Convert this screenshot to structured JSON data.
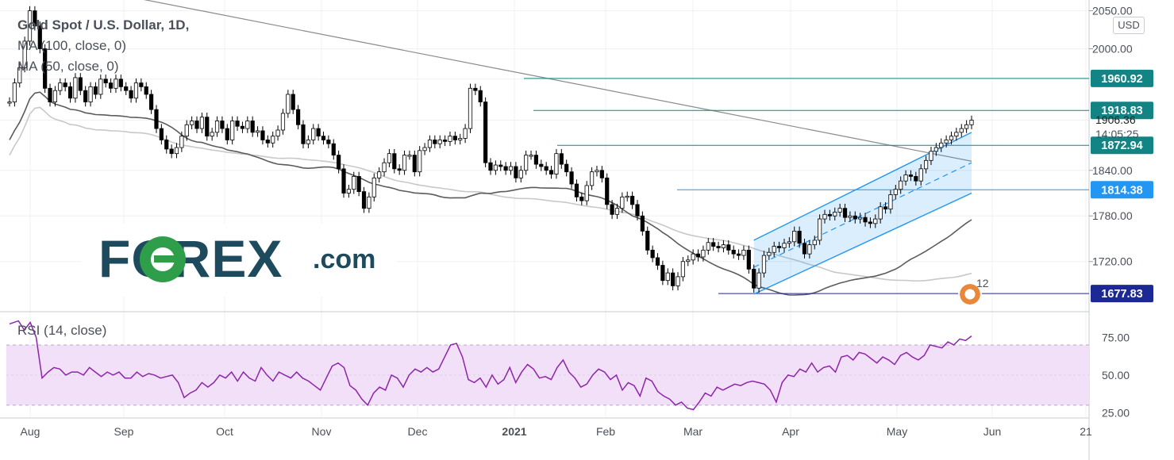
{
  "chart_data": [
    {
      "type": "line",
      "panel": "price",
      "title": "Gold Spot / U.S. Dollar, 1D,",
      "unit": "USD",
      "moving_averages": [
        {
          "name": "MA (100, close, 0)",
          "color": "#c8c8c8"
        },
        {
          "name": "MA (50, close, 0)",
          "color": "#5b5b5b"
        }
      ],
      "candles_color": "#000000",
      "channel_color": "#2196f3",
      "ylim": [
        1655,
        2060
      ],
      "y_ticks": [
        "2050.00",
        "2000.00",
        "1840.00",
        "1780.00",
        "1720.00"
      ],
      "x_months": [
        "Aug",
        "Sep",
        "Oct",
        "Nov",
        "Dec",
        "2021",
        "Feb",
        "Mar",
        "Apr",
        "May",
        "Jun",
        "21"
      ],
      "price_labels": [
        {
          "value": "1960.92",
          "level": 1960.92,
          "style": "teal"
        },
        {
          "value": "1918.83",
          "level": 1918.83,
          "style": "teal"
        },
        {
          "value": "1872.94",
          "level": 1872.94,
          "style": "teal"
        },
        {
          "value": "1814.38",
          "level": 1814.38,
          "style": "blue"
        },
        {
          "value": "1677.83",
          "level": 1677.83,
          "style": "navy"
        }
      ],
      "last_price": "1906.36",
      "countdown": "14:05:25",
      "close_series": [
        [
          0,
          1930
        ],
        [
          1,
          1955
        ],
        [
          2,
          1975
        ],
        [
          3,
          2010
        ],
        [
          4,
          2050
        ],
        [
          5,
          2030
        ],
        [
          6,
          2000
        ],
        [
          7,
          1948
        ],
        [
          8,
          1930
        ],
        [
          9,
          1945
        ],
        [
          10,
          1955
        ],
        [
          11,
          1950
        ],
        [
          12,
          1935
        ],
        [
          13,
          1962
        ],
        [
          14,
          1945
        ],
        [
          15,
          1930
        ],
        [
          16,
          1950
        ],
        [
          17,
          1940
        ],
        [
          18,
          1960
        ],
        [
          19,
          1955
        ],
        [
          20,
          1948
        ],
        [
          21,
          1960
        ],
        [
          22,
          1950
        ],
        [
          23,
          1945
        ],
        [
          24,
          1935
        ],
        [
          25,
          1955
        ],
        [
          26,
          1950
        ],
        [
          27,
          1940
        ],
        [
          28,
          1920
        ],
        [
          29,
          1895
        ],
        [
          30,
          1880
        ],
        [
          31,
          1868
        ],
        [
          32,
          1862
        ],
        [
          33,
          1870
        ],
        [
          34,
          1885
        ],
        [
          35,
          1900
        ],
        [
          36,
          1905
        ],
        [
          37,
          1895
        ],
        [
          38,
          1910
        ],
        [
          39,
          1885
        ],
        [
          40,
          1890
        ],
        [
          41,
          1905
        ],
        [
          42,
          1895
        ],
        [
          43,
          1880
        ],
        [
          44,
          1905
        ],
        [
          45,
          1898
        ],
        [
          46,
          1895
        ],
        [
          47,
          1905
        ],
        [
          48,
          1890
        ],
        [
          49,
          1892
        ],
        [
          50,
          1880
        ],
        [
          51,
          1876
        ],
        [
          52,
          1885
        ],
        [
          53,
          1893
        ],
        [
          54,
          1915
        ],
        [
          55,
          1940
        ],
        [
          56,
          1920
        ],
        [
          57,
          1900
        ],
        [
          58,
          1875
        ],
        [
          59,
          1880
        ],
        [
          60,
          1895
        ],
        [
          61,
          1885
        ],
        [
          62,
          1880
        ],
        [
          63,
          1875
        ],
        [
          64,
          1860
        ],
        [
          65,
          1842
        ],
        [
          66,
          1810
        ],
        [
          67,
          1815
        ],
        [
          68,
          1832
        ],
        [
          69,
          1812
        ],
        [
          70,
          1790
        ],
        [
          71,
          1805
        ],
        [
          72,
          1830
        ],
        [
          73,
          1838
        ],
        [
          74,
          1850
        ],
        [
          75,
          1862
        ],
        [
          76,
          1842
        ],
        [
          77,
          1840
        ],
        [
          78,
          1860
        ],
        [
          79,
          1860
        ],
        [
          80,
          1838
        ],
        [
          81,
          1866
        ],
        [
          82,
          1870
        ],
        [
          83,
          1880
        ],
        [
          84,
          1875
        ],
        [
          85,
          1880
        ],
        [
          86,
          1878
        ],
        [
          87,
          1885
        ],
        [
          88,
          1880
        ],
        [
          89,
          1882
        ],
        [
          90,
          1895
        ],
        [
          91,
          1948
        ],
        [
          92,
          1945
        ],
        [
          93,
          1930
        ],
        [
          94,
          1850
        ],
        [
          95,
          1840
        ],
        [
          96,
          1847
        ],
        [
          97,
          1845
        ],
        [
          98,
          1840
        ],
        [
          99,
          1845
        ],
        [
          100,
          1830
        ],
        [
          101,
          1840
        ],
        [
          102,
          1860
        ],
        [
          103,
          1860
        ],
        [
          104,
          1848
        ],
        [
          105,
          1845
        ],
        [
          106,
          1840
        ],
        [
          107,
          1835
        ],
        [
          108,
          1862
        ],
        [
          109,
          1848
        ],
        [
          110,
          1838
        ],
        [
          111,
          1822
        ],
        [
          112,
          1805
        ],
        [
          113,
          1800
        ],
        [
          114,
          1820
        ],
        [
          115,
          1838
        ],
        [
          116,
          1840
        ],
        [
          117,
          1830
        ],
        [
          118,
          1795
        ],
        [
          119,
          1782
        ],
        [
          120,
          1790
        ],
        [
          121,
          1805
        ],
        [
          122,
          1806
        ],
        [
          123,
          1795
        ],
        [
          124,
          1780
        ],
        [
          125,
          1760
        ],
        [
          126,
          1735
        ],
        [
          127,
          1725
        ],
        [
          128,
          1715
        ],
        [
          129,
          1695
        ],
        [
          130,
          1705
        ],
        [
          131,
          1688
        ],
        [
          132,
          1700
        ],
        [
          133,
          1720
        ],
        [
          134,
          1722
        ],
        [
          135,
          1730
        ],
        [
          136,
          1726
        ],
        [
          137,
          1735
        ],
        [
          138,
          1745
        ],
        [
          139,
          1740
        ],
        [
          140,
          1738
        ],
        [
          141,
          1742
        ],
        [
          142,
          1735
        ],
        [
          143,
          1730
        ],
        [
          144,
          1728
        ],
        [
          145,
          1735
        ],
        [
          146,
          1710
        ],
        [
          147,
          1685
        ],
        [
          148,
          1705
        ],
        [
          149,
          1728
        ],
        [
          150,
          1732
        ],
        [
          151,
          1740
        ],
        [
          152,
          1738
        ],
        [
          153,
          1744
        ],
        [
          154,
          1746
        ],
        [
          155,
          1760
        ],
        [
          156,
          1744
        ],
        [
          157,
          1730
        ],
        [
          158,
          1742
        ],
        [
          159,
          1748
        ],
        [
          160,
          1776
        ],
        [
          161,
          1782
        ],
        [
          162,
          1780
        ],
        [
          163,
          1785
        ],
        [
          164,
          1790
        ],
        [
          165,
          1778
        ],
        [
          166,
          1780
        ],
        [
          167,
          1776
        ],
        [
          168,
          1778
        ],
        [
          169,
          1772
        ],
        [
          170,
          1770
        ],
        [
          171,
          1776
        ],
        [
          172,
          1792
        ],
        [
          173,
          1789
        ],
        [
          174,
          1808
        ],
        [
          175,
          1815
        ],
        [
          176,
          1826
        ],
        [
          177,
          1834
        ],
        [
          178,
          1832
        ],
        [
          179,
          1826
        ],
        [
          180,
          1842
        ],
        [
          181,
          1853
        ],
        [
          182,
          1865
        ],
        [
          183,
          1870
        ],
        [
          184,
          1876
        ],
        [
          185,
          1880
        ],
        [
          186,
          1885
        ],
        [
          187,
          1890
        ],
        [
          188,
          1895
        ],
        [
          189,
          1900
        ],
        [
          190,
          1906
        ]
      ]
    },
    {
      "type": "line",
      "panel": "rsi",
      "title": "RSI (14, close)",
      "color": "#8e24aa",
      "band": [
        30,
        70
      ],
      "band_color": "#f2e0f8",
      "ylim": [
        22,
        90
      ],
      "y_ticks": [
        "75.00",
        "50.00",
        "25.00"
      ],
      "values": [
        [
          0,
          84
        ],
        [
          3,
          86
        ],
        [
          5,
          80
        ],
        [
          7,
          85
        ],
        [
          9,
          75
        ],
        [
          11,
          48
        ],
        [
          13,
          52
        ],
        [
          15,
          55
        ],
        [
          17,
          54
        ],
        [
          19,
          50
        ],
        [
          21,
          52
        ],
        [
          23,
          52
        ],
        [
          25,
          50
        ],
        [
          27,
          55
        ],
        [
          29,
          52
        ],
        [
          31,
          49
        ],
        [
          33,
          52
        ],
        [
          35,
          50
        ],
        [
          37,
          52
        ],
        [
          39,
          48
        ],
        [
          41,
          48
        ],
        [
          43,
          52
        ],
        [
          45,
          49
        ],
        [
          47,
          51
        ],
        [
          49,
          50
        ],
        [
          51,
          48
        ],
        [
          53,
          49
        ],
        [
          55,
          50
        ],
        [
          57,
          45
        ],
        [
          59,
          35
        ],
        [
          61,
          38
        ],
        [
          63,
          40
        ],
        [
          65,
          45
        ],
        [
          67,
          42
        ],
        [
          69,
          45
        ],
        [
          71,
          50
        ],
        [
          73,
          48
        ],
        [
          75,
          52
        ],
        [
          77,
          46
        ],
        [
          79,
          52
        ],
        [
          81,
          48
        ],
        [
          83,
          46
        ],
        [
          85,
          55
        ],
        [
          87,
          50
        ],
        [
          89,
          46
        ],
        [
          91,
          52
        ],
        [
          93,
          50
        ],
        [
          95,
          48
        ],
        [
          97,
          52
        ],
        [
          99,
          48
        ],
        [
          101,
          46
        ],
        [
          103,
          43
        ],
        [
          105,
          40
        ],
        [
          107,
          48
        ],
        [
          109,
          56
        ],
        [
          111,
          58
        ],
        [
          113,
          55
        ],
        [
          115,
          43
        ],
        [
          117,
          40
        ],
        [
          119,
          34
        ],
        [
          121,
          30
        ],
        [
          123,
          38
        ],
        [
          125,
          42
        ],
        [
          127,
          40
        ],
        [
          129,
          50
        ],
        [
          131,
          48
        ],
        [
          133,
          42
        ],
        [
          135,
          50
        ],
        [
          137,
          54
        ],
        [
          139,
          52
        ],
        [
          141,
          55
        ],
        [
          143,
          52
        ],
        [
          145,
          54
        ],
        [
          147,
          62
        ],
        [
          149,
          70
        ],
        [
          151,
          71
        ],
        [
          153,
          62
        ],
        [
          155,
          47
        ],
        [
          157,
          45
        ],
        [
          159,
          48
        ],
        [
          161,
          42
        ],
        [
          163,
          50
        ],
        [
          165,
          44
        ],
        [
          167,
          47
        ],
        [
          169,
          55
        ],
        [
          171,
          45
        ],
        [
          173,
          52
        ],
        [
          175,
          57
        ],
        [
          177,
          54
        ],
        [
          179,
          48
        ],
        [
          181,
          49
        ],
        [
          183,
          47
        ],
        [
          185,
          55
        ],
        [
          187,
          60
        ],
        [
          189,
          52
        ],
        [
          191,
          48
        ],
        [
          193,
          42
        ],
        [
          195,
          44
        ],
        [
          197,
          50
        ],
        [
          199,
          54
        ],
        [
          201,
          52
        ],
        [
          203,
          47
        ],
        [
          205,
          50
        ],
        [
          207,
          40
        ],
        [
          209,
          45
        ],
        [
          211,
          43
        ],
        [
          213,
          36
        ],
        [
          215,
          48
        ],
        [
          217,
          46
        ],
        [
          219,
          39
        ],
        [
          221,
          36
        ],
        [
          223,
          34
        ],
        [
          225,
          30
        ],
        [
          227,
          32
        ],
        [
          229,
          28
        ],
        [
          231,
          27
        ],
        [
          233,
          32
        ],
        [
          235,
          38
        ],
        [
          237,
          36
        ],
        [
          239,
          42
        ],
        [
          241,
          40
        ],
        [
          243,
          42
        ],
        [
          245,
          44
        ],
        [
          247,
          43
        ],
        [
          249,
          45
        ],
        [
          251,
          46
        ],
        [
          253,
          45
        ],
        [
          255,
          44
        ],
        [
          257,
          40
        ],
        [
          259,
          32
        ],
        [
          261,
          45
        ],
        [
          263,
          50
        ],
        [
          265,
          49
        ],
        [
          267,
          54
        ],
        [
          269,
          52
        ],
        [
          271,
          58
        ],
        [
          273,
          52
        ],
        [
          275,
          55
        ],
        [
          277,
          56
        ],
        [
          279,
          52
        ],
        [
          281,
          62
        ],
        [
          283,
          63
        ],
        [
          285,
          60
        ],
        [
          287,
          65
        ],
        [
          289,
          64
        ],
        [
          291,
          61
        ],
        [
          293,
          58
        ],
        [
          295,
          62
        ],
        [
          297,
          60
        ],
        [
          299,
          57
        ],
        [
          301,
          63
        ],
        [
          303,
          65
        ],
        [
          305,
          62
        ],
        [
          307,
          60
        ],
        [
          309,
          63
        ],
        [
          311,
          70
        ],
        [
          313,
          69
        ],
        [
          315,
          68
        ],
        [
          317,
          72
        ],
        [
          319,
          70
        ],
        [
          321,
          74
        ],
        [
          323,
          73
        ],
        [
          325,
          76
        ]
      ]
    }
  ],
  "logo": {
    "word": "FOREX",
    "suffix": ".com"
  },
  "event": {
    "label": "12"
  }
}
